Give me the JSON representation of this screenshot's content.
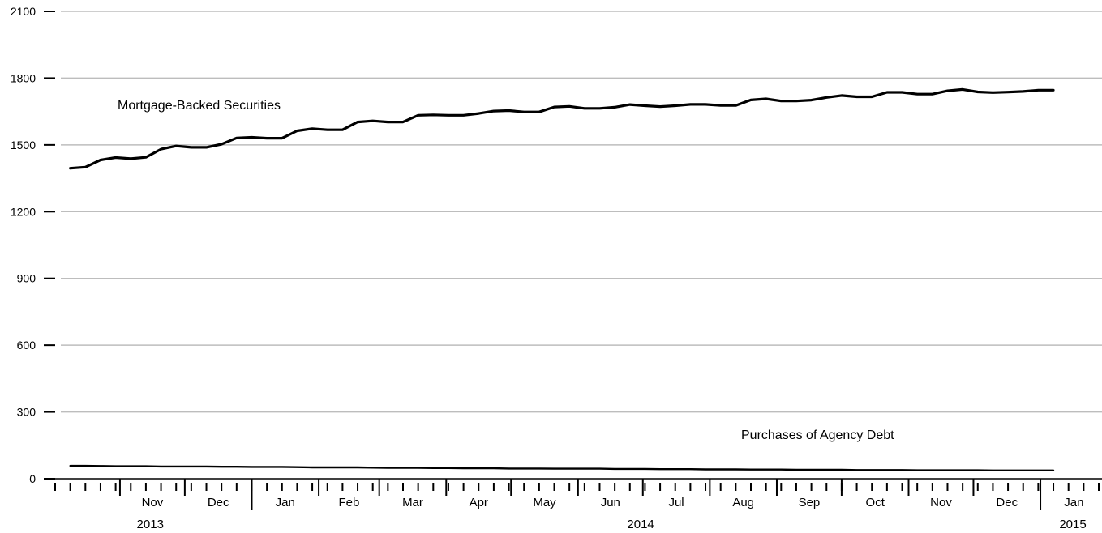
{
  "chart_data": {
    "type": "line",
    "ylim": [
      0,
      2100
    ],
    "y_ticks": [
      "0",
      "300",
      "600",
      "900",
      "1200",
      "1500",
      "1800",
      "2100"
    ],
    "grid": true,
    "x_start": "2013-10-02",
    "x_end": "2015-01-28",
    "x_weekly": true,
    "months": [
      {
        "label": "Nov",
        "date": "2013-11-01"
      },
      {
        "label": "Dec",
        "date": "2013-12-01"
      },
      {
        "label": "Jan",
        "date": "2014-01-01"
      },
      {
        "label": "Feb",
        "date": "2014-02-01"
      },
      {
        "label": "Mar",
        "date": "2014-03-01"
      },
      {
        "label": "Apr",
        "date": "2014-04-01"
      },
      {
        "label": "May",
        "date": "2014-05-01"
      },
      {
        "label": "Jun",
        "date": "2014-06-01"
      },
      {
        "label": "Jul",
        "date": "2014-07-01"
      },
      {
        "label": "Aug",
        "date": "2014-08-01"
      },
      {
        "label": "Sep",
        "date": "2014-09-01"
      },
      {
        "label": "Oct",
        "date": "2014-10-01"
      },
      {
        "label": "Nov",
        "date": "2014-11-01"
      },
      {
        "label": "Dec",
        "date": "2014-12-01"
      },
      {
        "label": "Jan",
        "date": "2015-01-01"
      }
    ],
    "years": [
      {
        "label": "2013",
        "date": "2013-11-15"
      },
      {
        "label": "2014",
        "date": "2014-06-30"
      },
      {
        "label": "2015",
        "date": "2015-01-16"
      }
    ],
    "series": [
      {
        "name": "Mortgage-Backed Securities",
        "color": "#000000",
        "x_start": "2013-10-09",
        "values": [
          1395,
          1400,
          1432,
          1443,
          1438,
          1444,
          1481,
          1495,
          1489,
          1489,
          1503,
          1531,
          1534,
          1530,
          1530,
          1563,
          1573,
          1568,
          1568,
          1603,
          1608,
          1603,
          1603,
          1633,
          1635,
          1633,
          1633,
          1641,
          1652,
          1654,
          1648,
          1648,
          1670,
          1673,
          1664,
          1664,
          1669,
          1681,
          1676,
          1672,
          1676,
          1682,
          1682,
          1677,
          1677,
          1702,
          1707,
          1697,
          1697,
          1701,
          1713,
          1722,
          1716,
          1716,
          1736,
          1736,
          1728,
          1728,
          1743,
          1749,
          1738,
          1735,
          1737,
          1740,
          1746,
          1746
        ]
      },
      {
        "name": "Purchases of Agency Debt",
        "color": "#000000",
        "x_start": "2013-10-09",
        "values": [
          58,
          58,
          57,
          56,
          56,
          56,
          55,
          55,
          55,
          55,
          54,
          54,
          53,
          53,
          53,
          52,
          51,
          51,
          51,
          51,
          50,
          49,
          49,
          49,
          48,
          48,
          47,
          47,
          47,
          46,
          46,
          46,
          45,
          45,
          45,
          45,
          44,
          44,
          44,
          43,
          43,
          43,
          42,
          42,
          42,
          41,
          41,
          41,
          40,
          40,
          40,
          40,
          39,
          39,
          39,
          39,
          38,
          38,
          38,
          38,
          38,
          37,
          37,
          37,
          37,
          37
        ]
      }
    ]
  }
}
